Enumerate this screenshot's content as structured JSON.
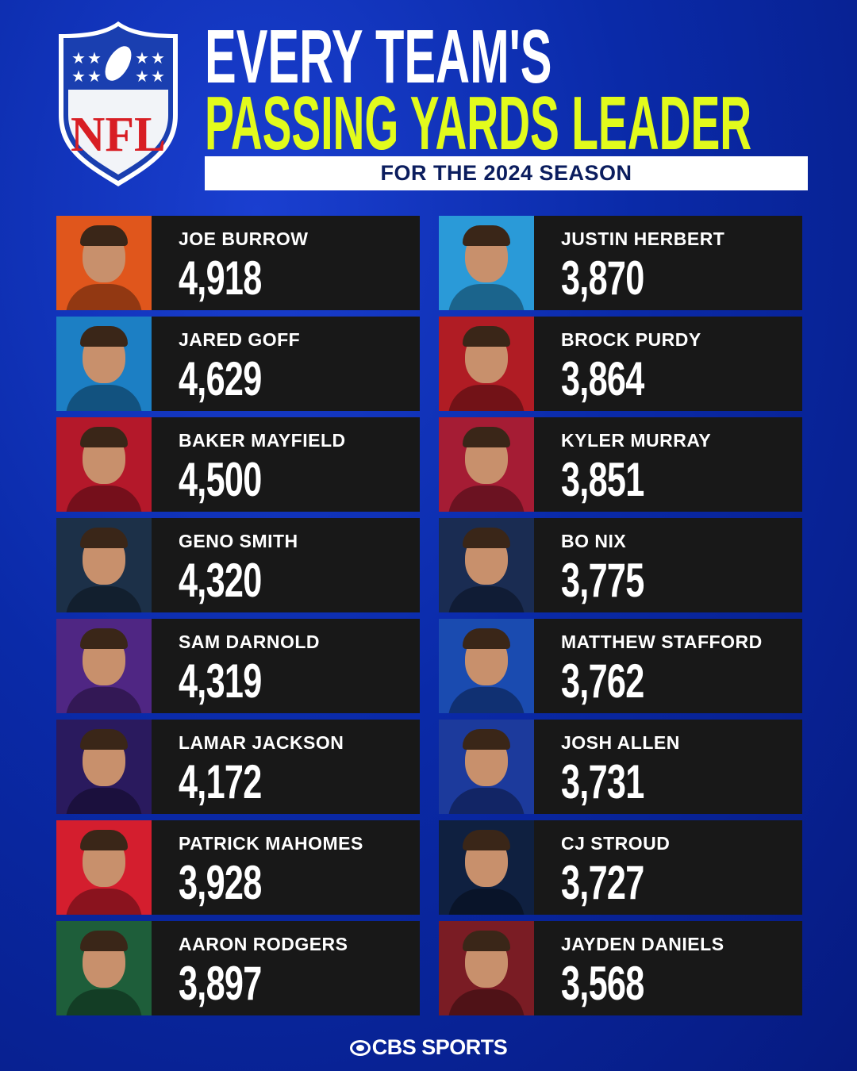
{
  "header": {
    "logo_text": "NFL",
    "line1": "EVERY TEAM'S",
    "line2": "PASSING YARDS LEADER",
    "subtitle": "FOR THE 2024 SEASON"
  },
  "colors": {
    "title_accent": "#e2fb1c",
    "card_bg": "#181818",
    "subtitle_text": "#0b1d5e"
  },
  "players": [
    {
      "name": "JOE BURROW",
      "yards": "4,918",
      "team_color": "#e0561c"
    },
    {
      "name": "JARED GOFF",
      "yards": "4,629",
      "team_color": "#1c7fc4"
    },
    {
      "name": "BAKER MAYFIELD",
      "yards": "4,500",
      "team_color": "#b4182a"
    },
    {
      "name": "GENO SMITH",
      "yards": "4,320",
      "team_color": "#1c3048"
    },
    {
      "name": "SAM DARNOLD",
      "yards": "4,319",
      "team_color": "#4f2683"
    },
    {
      "name": "LAMAR JACKSON",
      "yards": "4,172",
      "team_color": "#2a1a5e"
    },
    {
      "name": "PATRICK MAHOMES",
      "yards": "3,928",
      "team_color": "#d41e2e"
    },
    {
      "name": "AARON RODGERS",
      "yards": "3,897",
      "team_color": "#1e5e3a"
    },
    {
      "name": "JUSTIN HERBERT",
      "yards": "3,870",
      "team_color": "#2a9ad8"
    },
    {
      "name": "BROCK PURDY",
      "yards": "3,864",
      "team_color": "#b01c24"
    },
    {
      "name": "KYLER MURRAY",
      "yards": "3,851",
      "team_color": "#a51c34"
    },
    {
      "name": "BO NIX",
      "yards": "3,775",
      "team_color": "#1a2c52"
    },
    {
      "name": "MATTHEW STAFFORD",
      "yards": "3,762",
      "team_color": "#1a4bb0"
    },
    {
      "name": "JOSH ALLEN",
      "yards": "3,731",
      "team_color": "#1c3a9c"
    },
    {
      "name": "CJ STROUD",
      "yards": "3,727",
      "team_color": "#0f2040"
    },
    {
      "name": "JAYDEN DANIELS",
      "yards": "3,568",
      "team_color": "#7a1c24"
    }
  ],
  "footer": {
    "brand": "CBS SPORTS"
  }
}
